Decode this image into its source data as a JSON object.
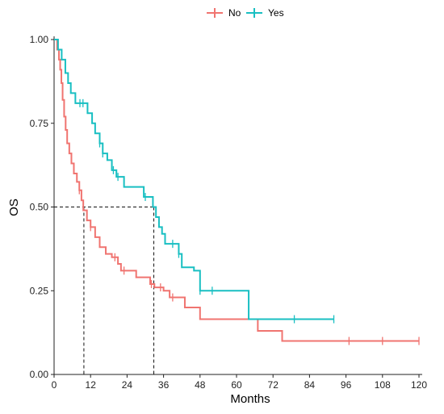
{
  "chart_data": {
    "type": "line",
    "title": "",
    "xlabel": "Months",
    "ylabel": "OS",
    "xlim": [
      0,
      120
    ],
    "ylim": [
      0,
      1
    ],
    "x_ticks": [
      0,
      12,
      24,
      36,
      48,
      60,
      72,
      84,
      96,
      108,
      120
    ],
    "x_tick_labels": [
      "0",
      "12",
      "24",
      "36",
      "48",
      "60",
      "72",
      "84",
      "96",
      "108",
      "120"
    ],
    "y_ticks": [
      0,
      0.25,
      0.5,
      0.75,
      1
    ],
    "y_tick_labels": [
      "0.00",
      "0.25",
      "0.50",
      "0.75",
      "1.00"
    ],
    "grid": false,
    "legend_position": "top",
    "series": [
      {
        "name": "No",
        "color": "#f07470",
        "steps": [
          [
            0,
            1.0
          ],
          [
            1,
            0.97
          ],
          [
            1.6,
            0.94
          ],
          [
            2,
            0.91
          ],
          [
            2.4,
            0.87
          ],
          [
            2.8,
            0.82
          ],
          [
            3.3,
            0.77
          ],
          [
            3.8,
            0.73
          ],
          [
            4.3,
            0.69
          ],
          [
            5,
            0.66
          ],
          [
            5.7,
            0.63
          ],
          [
            6.5,
            0.6
          ],
          [
            7.5,
            0.575
          ],
          [
            8.3,
            0.55
          ],
          [
            9,
            0.52
          ],
          [
            9.6,
            0.49
          ],
          [
            10.8,
            0.46
          ],
          [
            12,
            0.44
          ],
          [
            13.5,
            0.41
          ],
          [
            15,
            0.38
          ],
          [
            17,
            0.36
          ],
          [
            19,
            0.35
          ],
          [
            21,
            0.33
          ],
          [
            22,
            0.31
          ],
          [
            27,
            0.29
          ],
          [
            31.6,
            0.27
          ],
          [
            33,
            0.26
          ],
          [
            36,
            0.25
          ],
          [
            38,
            0.23
          ],
          [
            43,
            0.2
          ],
          [
            48,
            0.165
          ],
          [
            64,
            0.165
          ],
          [
            67,
            0.13
          ],
          [
            75,
            0.1
          ],
          [
            120,
            0.1
          ]
        ],
        "censor_x": [
          8.3,
          12,
          20,
          23,
          32,
          35,
          39,
          97,
          108,
          120
        ]
      },
      {
        "name": "Yes",
        "color": "#19bfc2",
        "steps": [
          [
            0,
            1.0
          ],
          [
            1.3,
            0.97
          ],
          [
            2.5,
            0.94
          ],
          [
            3.7,
            0.9
          ],
          [
            4.6,
            0.87
          ],
          [
            5.5,
            0.84
          ],
          [
            7,
            0.81
          ],
          [
            11,
            0.78
          ],
          [
            12.5,
            0.75
          ],
          [
            13.5,
            0.72
          ],
          [
            15,
            0.69
          ],
          [
            16,
            0.66
          ],
          [
            17.5,
            0.64
          ],
          [
            19,
            0.61
          ],
          [
            20.5,
            0.59
          ],
          [
            23,
            0.56
          ],
          [
            29.5,
            0.53
          ],
          [
            32.5,
            0.5
          ],
          [
            33.5,
            0.47
          ],
          [
            34.5,
            0.44
          ],
          [
            35.5,
            0.42
          ],
          [
            36.5,
            0.39
          ],
          [
            41,
            0.36
          ],
          [
            42,
            0.32
          ],
          [
            46,
            0.31
          ],
          [
            48,
            0.25
          ],
          [
            64,
            0.165
          ],
          [
            92,
            0.165
          ]
        ],
        "censor_x": [
          8.5,
          9.5,
          15,
          16,
          19.5,
          21,
          30,
          39,
          41,
          48,
          52,
          79,
          92
        ]
      }
    ],
    "median_reference": [
      {
        "series": "No",
        "y": 0.5,
        "x": 9.8
      },
      {
        "series": "Yes",
        "y": 0.5,
        "x": 32.8
      }
    ]
  }
}
